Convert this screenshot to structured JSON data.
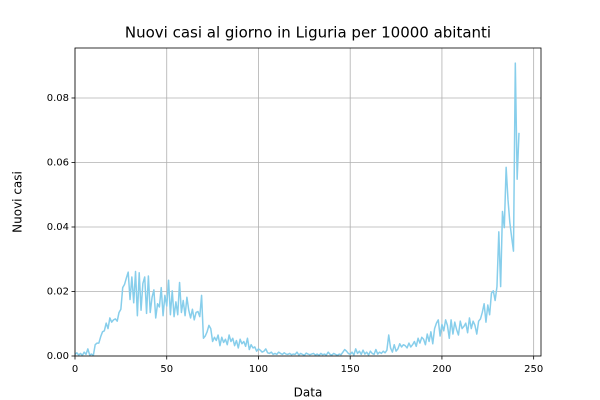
{
  "chart_data": {
    "type": "line",
    "title": "Nuovi casi al giorno in Liguria per 10000 abitanti",
    "x_label": "Data",
    "y_label": "Nuovi casi",
    "xlim": [
      0,
      254
    ],
    "ylim": [
      0,
      0.0955
    ],
    "xticks": [
      0,
      50,
      100,
      150,
      200,
      250
    ],
    "yticks": [
      {
        "value": 0,
        "label": "0.00"
      },
      {
        "value": 0.02,
        "label": "0.02"
      },
      {
        "value": 0.04,
        "label": "0.04"
      },
      {
        "value": 0.06,
        "label": "0.06"
      },
      {
        "value": 0.08,
        "label": "0.08"
      }
    ],
    "grid": true,
    "series": [
      {
        "color": "#87ceeb",
        "x": [
          0,
          1,
          2,
          3,
          4,
          5,
          6,
          7,
          8,
          9,
          10,
          11,
          12,
          13,
          14,
          15,
          16,
          17,
          18,
          19,
          20,
          21,
          22,
          23,
          24,
          25,
          26,
          27,
          28,
          29,
          30,
          31,
          32,
          33,
          34,
          35,
          36,
          37,
          38,
          39,
          40,
          41,
          42,
          43,
          44,
          45,
          46,
          47,
          48,
          49,
          50,
          51,
          52,
          53,
          54,
          55,
          56,
          57,
          58,
          59,
          60,
          61,
          62,
          63,
          64,
          65,
          66,
          67,
          68,
          69,
          70,
          71,
          72,
          73,
          74,
          75,
          76,
          77,
          78,
          79,
          80,
          81,
          82,
          83,
          84,
          85,
          86,
          87,
          88,
          89,
          90,
          91,
          92,
          93,
          94,
          95,
          96,
          97,
          98,
          99,
          100,
          101,
          102,
          103,
          104,
          105,
          106,
          107,
          108,
          109,
          110,
          111,
          112,
          113,
          114,
          115,
          116,
          117,
          118,
          119,
          120,
          121,
          122,
          123,
          124,
          125,
          126,
          127,
          128,
          129,
          130,
          131,
          132,
          133,
          134,
          135,
          136,
          137,
          138,
          139,
          140,
          141,
          142,
          143,
          144,
          145,
          146,
          147,
          148,
          149,
          150,
          151,
          152,
          153,
          154,
          155,
          156,
          157,
          158,
          159,
          160,
          161,
          162,
          163,
          164,
          165,
          166,
          167,
          168,
          169,
          170,
          171,
          172,
          173,
          174,
          175,
          176,
          177,
          178,
          179,
          180,
          181,
          182,
          183,
          184,
          185,
          186,
          187,
          188,
          189,
          190,
          191,
          192,
          193,
          194,
          195,
          196,
          197,
          198,
          199,
          200,
          201,
          202,
          203,
          204,
          205,
          206,
          207,
          208,
          209,
          210,
          211,
          212,
          213,
          214,
          215,
          216,
          217,
          218,
          219,
          220,
          221,
          222,
          223,
          224,
          225,
          226,
          227,
          228,
          229,
          230,
          231,
          232,
          233,
          234,
          235,
          236,
          237,
          238,
          239,
          240,
          241,
          242
        ],
        "values": [
          0.0005,
          0.001,
          0.0003,
          0.0008,
          0.0002,
          0.0012,
          0.0005,
          0.0022,
          0.0003,
          0.0006,
          0.0002,
          0.0035,
          0.004,
          0.004,
          0.006,
          0.0075,
          0.0078,
          0.0102,
          0.0085,
          0.0118,
          0.0105,
          0.0112,
          0.0115,
          0.0108,
          0.0135,
          0.0145,
          0.0212,
          0.0222,
          0.0242,
          0.026,
          0.0175,
          0.0245,
          0.0165,
          0.0262,
          0.0125,
          0.0258,
          0.0142,
          0.0225,
          0.0245,
          0.0132,
          0.0248,
          0.0135,
          0.0182,
          0.0205,
          0.0118,
          0.0162,
          0.0152,
          0.0212,
          0.0125,
          0.0188,
          0.0155,
          0.0235,
          0.0128,
          0.0202,
          0.0122,
          0.0168,
          0.0128,
          0.0228,
          0.0135,
          0.0172,
          0.0125,
          0.0182,
          0.0142,
          0.0118,
          0.0145,
          0.0112,
          0.0135,
          0.0138,
          0.0122,
          0.0188,
          0.0055,
          0.0062,
          0.0075,
          0.0095,
          0.0085,
          0.0045,
          0.0058,
          0.0048,
          0.0065,
          0.0032,
          0.0058,
          0.0042,
          0.0052,
          0.0035,
          0.0065,
          0.0045,
          0.0055,
          0.0032,
          0.0048,
          0.0025,
          0.0052,
          0.0038,
          0.0045,
          0.003,
          0.0055,
          0.002,
          0.0035,
          0.0025,
          0.0028,
          0.0015,
          0.0022,
          0.0018,
          0.0012,
          0.0015,
          0.0022,
          0.001,
          0.0008,
          0.0012,
          0.0005,
          0.0008,
          0.0005,
          0.0012,
          0.0008,
          0.0005,
          0.001,
          0.0006,
          0.0005,
          0.0008,
          0.0004,
          0.0006,
          0.0005,
          0.0012,
          0.0003,
          0.0008,
          0.0005,
          0.0002,
          0.0009,
          0.0006,
          0.0004,
          0.0006,
          0.0008,
          0.0003,
          0.0006,
          0.0002,
          0.0008,
          0.0004,
          0.0006,
          0.0003,
          0.0012,
          0.0005,
          0.0003,
          0.0008,
          0.0005,
          0.0002,
          0.0006,
          0.0004,
          0.0012,
          0.002,
          0.0015,
          0.0008,
          0.0005,
          0.0012,
          0.0003,
          0.0022,
          0.0008,
          0.0015,
          0.0005,
          0.0018,
          0.0006,
          0.0012,
          0.0003,
          0.0015,
          0.0008,
          0.0005,
          0.002,
          0.0006,
          0.0012,
          0.0008,
          0.0015,
          0.001,
          0.0018,
          0.0065,
          0.0025,
          0.0012,
          0.0035,
          0.0015,
          0.0022,
          0.0038,
          0.0028,
          0.0035,
          0.0032,
          0.0025,
          0.004,
          0.0028,
          0.0035,
          0.0045,
          0.003,
          0.0055,
          0.004,
          0.0058,
          0.0052,
          0.0035,
          0.0068,
          0.0045,
          0.0075,
          0.0038,
          0.0085,
          0.0102,
          0.0112,
          0.0062,
          0.0098,
          0.0078,
          0.0112,
          0.0095,
          0.0055,
          0.0112,
          0.0068,
          0.0105,
          0.0082,
          0.0065,
          0.0108,
          0.0085,
          0.0092,
          0.0102,
          0.0072,
          0.0118,
          0.0085,
          0.0108,
          0.0095,
          0.0068,
          0.0108,
          0.0115,
          0.0135,
          0.0162,
          0.0105,
          0.0158,
          0.0128,
          0.0195,
          0.0202,
          0.0172,
          0.0215,
          0.0385,
          0.0215,
          0.0448,
          0.0398,
          0.0585,
          0.0485,
          0.0415,
          0.0368,
          0.0325,
          0.0908,
          0.0548,
          0.0692
        ]
      }
    ]
  }
}
